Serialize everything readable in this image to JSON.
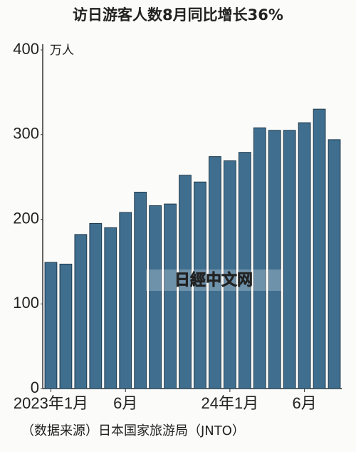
{
  "chart_data": {
    "type": "bar",
    "title": "访日游客人数8月同比增长36%",
    "unit_label": "万人",
    "categories": [
      "2023年1月",
      null,
      null,
      null,
      null,
      "6月",
      null,
      null,
      null,
      null,
      null,
      null,
      "24年1月",
      null,
      null,
      null,
      null,
      "6月",
      null,
      null
    ],
    "values": [
      149,
      147,
      182,
      195,
      190,
      208,
      232,
      216,
      218,
      252,
      244,
      274,
      269,
      279,
      308,
      305,
      305,
      314,
      330,
      294
    ],
    "color": "#3f6e8f",
    "ylim": [
      0,
      400
    ],
    "yticks": [
      0,
      100,
      200,
      300,
      400
    ],
    "grid": false,
    "source": "（数据来源）日本国家旅游局（JNTO）",
    "watermark": "日經中文网"
  }
}
